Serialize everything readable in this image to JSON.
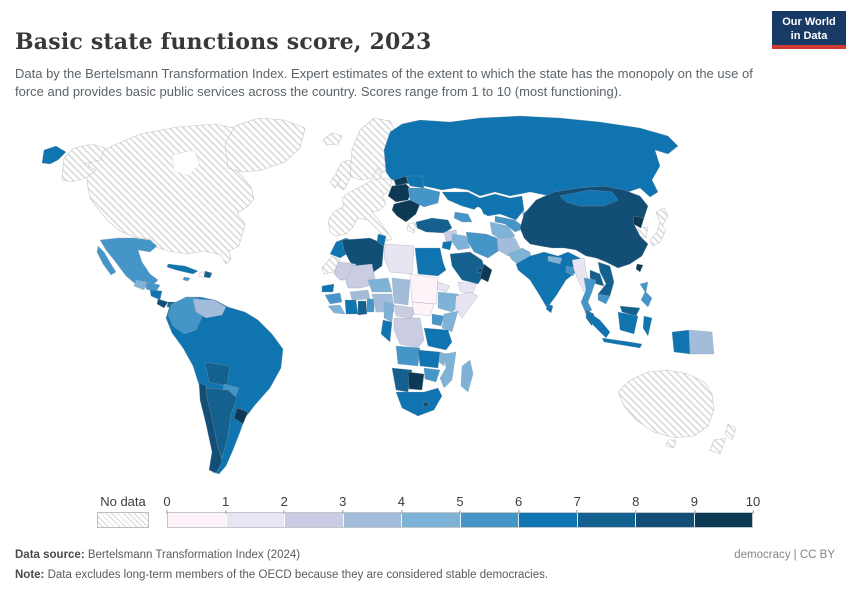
{
  "header": {
    "title": "Basic state functions score, 2023",
    "subtitle": "Data by the Bertelsmann Transformation Index. Expert estimates of the extent to which the state has the monopoly on the use of force and provides basic public services across the country. Scores range from 1 to 10 (most functioning).",
    "logo_line1": "Our World",
    "logo_line2": "in Data"
  },
  "scale": {
    "colors": [
      "#fdf3f9",
      "#e9e4f1",
      "#c9cce3",
      "#a3bcda",
      "#7fb2d7",
      "#4695c8",
      "#0f74b0",
      "#14608f",
      "#134e77",
      "#0d3954"
    ],
    "no_data_hatch_color": "#d8d8d8"
  },
  "legend": {
    "no_data_label": "No data",
    "ticks": [
      "0",
      "1",
      "2",
      "3",
      "4",
      "5",
      "6",
      "7",
      "8",
      "9",
      "10"
    ]
  },
  "footer": {
    "source_label": "Data source:",
    "source_text": " Bertelsmann Transformation Index (2024)",
    "note_label": "Note:",
    "note_text": " Data excludes long-term members of the OECD because they are considered stable democracies.",
    "right_text": "democracy | CC BY"
  },
  "chart_data": {
    "type": "heatmap",
    "subtype": "world-choropleth",
    "title": "Basic state functions score, 2023",
    "value_range": [
      1,
      10
    ],
    "legend_bins": [
      {
        "range": "0-1",
        "color": "#fdf3f9"
      },
      {
        "range": "1-2",
        "color": "#e9e4f1"
      },
      {
        "range": "2-3",
        "color": "#c9cce3"
      },
      {
        "range": "3-4",
        "color": "#a3bcda"
      },
      {
        "range": "4-5",
        "color": "#7fb2d7"
      },
      {
        "range": "5-6",
        "color": "#4695c8"
      },
      {
        "range": "6-7",
        "color": "#0f74b0"
      },
      {
        "range": "7-8",
        "color": "#14608f"
      },
      {
        "range": "8-9",
        "color": "#134e77"
      },
      {
        "range": "9-10",
        "color": "#0d3954"
      }
    ],
    "no_data_regions": [
      "Canada",
      "United States",
      "Greenland",
      "Iceland",
      "United Kingdom",
      "Ireland",
      "France",
      "Spain",
      "Portugal",
      "Germany",
      "Italy",
      "Norway",
      "Sweden",
      "Finland",
      "Denmark",
      "Switzerland",
      "Austria",
      "Greece",
      "Japan",
      "South Korea",
      "Australia",
      "New Zealand",
      "Guyana",
      "Suriname",
      "Western Sahara",
      "Israel"
    ],
    "regions": [
      {
        "name": "Sudan",
        "bin": "0-1"
      },
      {
        "name": "South Sudan",
        "bin": "0-1"
      },
      {
        "name": "Haiti",
        "bin": "0-1"
      },
      {
        "name": "Libya",
        "bin": "1-2"
      },
      {
        "name": "Somalia",
        "bin": "1-2"
      },
      {
        "name": "Yemen",
        "bin": "1-2"
      },
      {
        "name": "Myanmar",
        "bin": "1-2"
      },
      {
        "name": "Eritrea",
        "bin": "1-2"
      },
      {
        "name": "Syria",
        "bin": "2-3"
      },
      {
        "name": "Mauritania",
        "bin": "2-3"
      },
      {
        "name": "Mali",
        "bin": "2-3"
      },
      {
        "name": "Central African Republic",
        "bin": "2-3"
      },
      {
        "name": "DR Congo",
        "bin": "2-3"
      },
      {
        "name": "Venezuela",
        "bin": "3-4"
      },
      {
        "name": "Afghanistan",
        "bin": "3-4"
      },
      {
        "name": "Nigeria",
        "bin": "3-4"
      },
      {
        "name": "Chad",
        "bin": "3-4"
      },
      {
        "name": "Burkina Faso",
        "bin": "3-4"
      },
      {
        "name": "Papua New Guinea",
        "bin": "3-4"
      },
      {
        "name": "Pakistan",
        "bin": "4-5"
      },
      {
        "name": "Iraq",
        "bin": "4-5"
      },
      {
        "name": "Ethiopia",
        "bin": "4-5"
      },
      {
        "name": "Kenya",
        "bin": "4-5"
      },
      {
        "name": "Cameroon",
        "bin": "4-5"
      },
      {
        "name": "Liberia",
        "bin": "4-5"
      },
      {
        "name": "Mozambique",
        "bin": "4-5"
      },
      {
        "name": "Madagascar",
        "bin": "4-5"
      },
      {
        "name": "Niger",
        "bin": "4-5"
      },
      {
        "name": "Turkmenistan",
        "bin": "4-5"
      },
      {
        "name": "Kyrgyzstan",
        "bin": "4-5"
      },
      {
        "name": "Tajikistan",
        "bin": "4-5"
      },
      {
        "name": "Nepal",
        "bin": "4-5"
      },
      {
        "name": "Guatemala",
        "bin": "4-5"
      },
      {
        "name": "Malawi",
        "bin": "4-5"
      },
      {
        "name": "Mexico",
        "bin": "5-6"
      },
      {
        "name": "Honduras",
        "bin": "5-6"
      },
      {
        "name": "Colombia",
        "bin": "5-6"
      },
      {
        "name": "Paraguay",
        "bin": "5-6"
      },
      {
        "name": "Guinea",
        "bin": "5-6"
      },
      {
        "name": "Benin",
        "bin": "5-6"
      },
      {
        "name": "Angola",
        "bin": "5-6"
      },
      {
        "name": "Zimbabwe",
        "bin": "5-6"
      },
      {
        "name": "Uganda",
        "bin": "5-6"
      },
      {
        "name": "Iran",
        "bin": "5-6"
      },
      {
        "name": "Uzbekistan",
        "bin": "5-6"
      },
      {
        "name": "Ukraine",
        "bin": "5-6"
      },
      {
        "name": "Thailand",
        "bin": "5-6"
      },
      {
        "name": "Cambodia",
        "bin": "5-6"
      },
      {
        "name": "Philippines",
        "bin": "5-6"
      },
      {
        "name": "Bangladesh",
        "bin": "5-6"
      },
      {
        "name": "Azerbaijan",
        "bin": "5-6"
      },
      {
        "name": "Jamaica",
        "bin": "5-6"
      },
      {
        "name": "Cuba",
        "bin": "6-7"
      },
      {
        "name": "Nicaragua",
        "bin": "6-7"
      },
      {
        "name": "Brazil",
        "bin": "6-7"
      },
      {
        "name": "Peru",
        "bin": "6-7"
      },
      {
        "name": "Ecuador",
        "bin": "6-7"
      },
      {
        "name": "Morocco",
        "bin": "6-7"
      },
      {
        "name": "Tunisia",
        "bin": "6-7"
      },
      {
        "name": "Egypt",
        "bin": "6-7"
      },
      {
        "name": "Senegal",
        "bin": "6-7"
      },
      {
        "name": "Cote d'Ivoire",
        "bin": "6-7"
      },
      {
        "name": "Gabon",
        "bin": "6-7"
      },
      {
        "name": "Tanzania",
        "bin": "6-7"
      },
      {
        "name": "Zambia",
        "bin": "6-7"
      },
      {
        "name": "South Africa",
        "bin": "6-7"
      },
      {
        "name": "Jordan",
        "bin": "6-7"
      },
      {
        "name": "Kuwait",
        "bin": "6-7"
      },
      {
        "name": "Russia",
        "bin": "6-7"
      },
      {
        "name": "Kazakhstan",
        "bin": "6-7"
      },
      {
        "name": "Mongolia",
        "bin": "6-7"
      },
      {
        "name": "Belarus",
        "bin": "6-7"
      },
      {
        "name": "India",
        "bin": "6-7"
      },
      {
        "name": "Sri Lanka",
        "bin": "6-7"
      },
      {
        "name": "Indonesia",
        "bin": "6-7"
      },
      {
        "name": "Argentina",
        "bin": "7-8"
      },
      {
        "name": "Bolivia",
        "bin": "7-8"
      },
      {
        "name": "Panama",
        "bin": "7-8"
      },
      {
        "name": "Dominican Republic",
        "bin": "7-8"
      },
      {
        "name": "Ghana",
        "bin": "7-8"
      },
      {
        "name": "Namibia",
        "bin": "7-8"
      },
      {
        "name": "Turkey",
        "bin": "7-8"
      },
      {
        "name": "Saudi Arabia",
        "bin": "7-8"
      },
      {
        "name": "Laos",
        "bin": "7-8"
      },
      {
        "name": "Vietnam",
        "bin": "7-8"
      },
      {
        "name": "Malaysia",
        "bin": "7-8"
      },
      {
        "name": "Chile",
        "bin": "8-9"
      },
      {
        "name": "Costa Rica",
        "bin": "8-9"
      },
      {
        "name": "Algeria",
        "bin": "8-9"
      },
      {
        "name": "China",
        "bin": "8-9"
      },
      {
        "name": "United Arab Emirates",
        "bin": "8-9"
      },
      {
        "name": "Lesotho",
        "bin": "8-9"
      },
      {
        "name": "Uruguay",
        "bin": "9-10"
      },
      {
        "name": "Botswana",
        "bin": "9-10"
      },
      {
        "name": "Oman",
        "bin": "9-10"
      },
      {
        "name": "Taiwan",
        "bin": "9-10"
      },
      {
        "name": "North Korea",
        "bin": "9-10"
      },
      {
        "name": "Poland",
        "bin": "9-10"
      },
      {
        "name": "Czechia",
        "bin": "9-10"
      },
      {
        "name": "Slovakia",
        "bin": "9-10"
      },
      {
        "name": "Hungary",
        "bin": "9-10"
      },
      {
        "name": "Romania",
        "bin": "9-10"
      },
      {
        "name": "Bulgaria",
        "bin": "9-10"
      },
      {
        "name": "Serbia",
        "bin": "9-10"
      },
      {
        "name": "Estonia",
        "bin": "9-10"
      },
      {
        "name": "Latvia",
        "bin": "9-10"
      },
      {
        "name": "Lithuania",
        "bin": "9-10"
      }
    ]
  }
}
